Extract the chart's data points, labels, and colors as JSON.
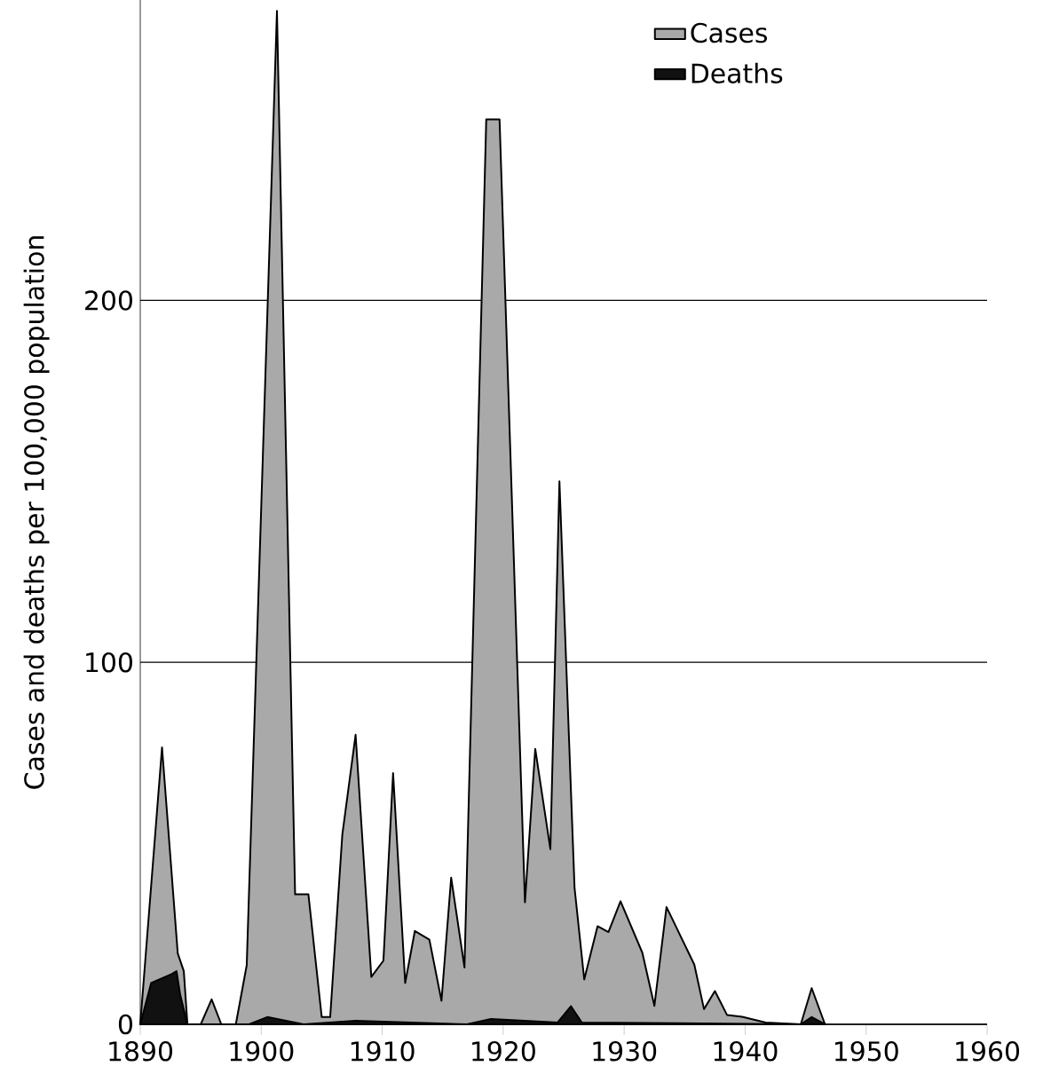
{
  "chart_data": {
    "type": "area",
    "ylabel": "Cases and deaths per 100,000 population",
    "xlim": [
      1890,
      1960
    ],
    "xticks": [
      1890,
      1900,
      1910,
      1920,
      1930,
      1940,
      1950,
      1960
    ],
    "ylim": [
      0,
      283
    ],
    "yticks": [
      0,
      100,
      200
    ],
    "grid": "y",
    "legend": "top right",
    "series": [
      {
        "name": "Cases",
        "color": "#a9a9a9",
        "x": [
          1890,
          1891.8,
          1893.1,
          1893.6,
          1893.9,
          1895.0,
          1895.9,
          1896.7,
          1897.9,
          1898.8,
          1901.3,
          1902.8,
          1903.9,
          1905.0,
          1905.7,
          1906.7,
          1907.8,
          1909.1,
          1910.1,
          1910.9,
          1911.9,
          1912.7,
          1913.9,
          1914.9,
          1915.7,
          1916.8,
          1918.6,
          1919.7,
          1921.8,
          1922.65,
          1923.9,
          1924.65,
          1925.9,
          1926.7,
          1927.8,
          1928.7,
          1929.7,
          1931.5,
          1932.5,
          1933.5,
          1935.8,
          1936.6,
          1937.5,
          1938.5,
          1939.75,
          1941.7,
          1944.6,
          1945.5,
          1946.6
        ],
        "values": [
          0,
          76.5,
          19.6,
          14.7,
          0,
          0,
          6.9,
          0,
          0,
          16.3,
          280,
          35.9,
          35.9,
          2,
          2,
          52.3,
          80,
          13.1,
          17.6,
          69.4,
          11.4,
          25.8,
          23.4,
          6.5,
          40.5,
          15.7,
          250,
          250,
          33.7,
          76.1,
          48.4,
          150,
          37.7,
          12.4,
          27.1,
          25.5,
          34,
          19.8,
          5.1,
          32.4,
          16.5,
          4.2,
          9.2,
          2.6,
          2.1,
          0.5,
          0,
          10,
          0
        ]
      },
      {
        "name": "Deaths",
        "color": "#111111",
        "x": [
          1890,
          1890.9,
          1892.6,
          1893.0,
          1893.3,
          1893.9,
          1899,
          1900.5,
          1903.5,
          1907.8,
          1917,
          1919,
          1924.5,
          1925.6,
          1926.5,
          1944.6,
          1945.5,
          1946.6
        ],
        "values": [
          0,
          11.4,
          13.9,
          14.7,
          8.2,
          0,
          0,
          2,
          0,
          1,
          0,
          1.5,
          0.5,
          5,
          0.5,
          0,
          2,
          0
        ]
      }
    ]
  }
}
